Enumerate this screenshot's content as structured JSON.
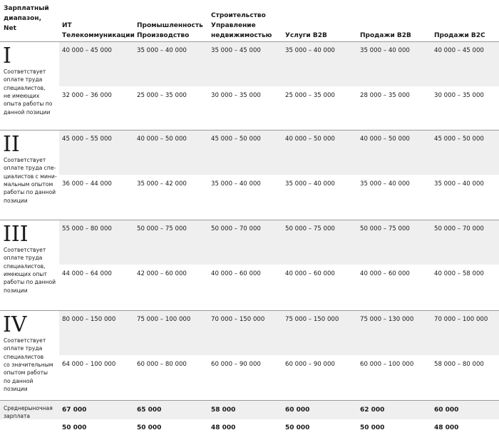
{
  "table": {
    "header": {
      "label": [
        "Зарплатный",
        "диапазон,",
        "Net"
      ],
      "columns": [
        [
          "ИТ",
          "Телекоммуникации"
        ],
        [
          "Промышленность",
          "Производство"
        ],
        [
          "Строительство",
          "Управление",
          "недвижимостью"
        ],
        [
          "Услуги B2B"
        ],
        [
          "Продажи B2B"
        ],
        [
          "Продажи B2C"
        ]
      ]
    },
    "groups": [
      {
        "numeral": "I",
        "description": [
          "Соответствует",
          "оплате труда",
          "специалистов,",
          "не имеющих",
          "опыта работы по",
          "данной позиции"
        ],
        "rows": [
          [
            "40 000 – 45 000",
            "35 000 – 40 000",
            "35 000 – 45 000",
            "35 000 – 40 000",
            "35 000 – 40 000",
            "40 000 – 45 000"
          ],
          [
            "32 000 – 36 000",
            "25 000 – 35 000",
            "30 000 – 35 000",
            "25 000 – 35 000",
            "28 000 – 35 000",
            "30 000 – 35 000"
          ]
        ]
      },
      {
        "numeral": "II",
        "description": [
          "Соответствует",
          "оплате труда спе-",
          "циалистов с мини-",
          "мальным опытом",
          "работы по данной",
          "позиции"
        ],
        "rows": [
          [
            "45 000 – 55 000",
            "40 000 – 50 000",
            "45 000 – 50 000",
            "40 000 – 50 000",
            "40 000 – 50 000",
            "45 000 – 50 000"
          ],
          [
            "36 000 – 44 000",
            "35 000 – 42 000",
            "35 000 – 40 000",
            "35 000 – 40 000",
            "35 000 – 40 000",
            "35 000 – 40 000"
          ]
        ]
      },
      {
        "numeral": "III",
        "description": [
          "Соответствует",
          "оплате труда",
          "специалистов,",
          "имеющих опыт",
          "работы по данной",
          "позиции"
        ],
        "rows": [
          [
            "55 000 – 80 000",
            "50 000 – 75 000",
            "50 000 – 70 000",
            "50 000 – 75 000",
            "50 000 – 75 000",
            "50 000 – 70 000"
          ],
          [
            "44 000 – 64 000",
            "42 000 – 60 000",
            "40 000 – 60 000",
            "40 000 – 60 000",
            "40 000 – 60 000",
            "40 000 – 58 000"
          ]
        ]
      },
      {
        "numeral": "IV",
        "description": [
          "Соответствует",
          "оплате труда",
          "специалистов",
          "со значительным",
          "опытом работы",
          "по данной",
          "позиции"
        ],
        "rows": [
          [
            "80 000 – 150 000",
            "75 000 – 100 000",
            "70 000 – 150 000",
            "75 000 – 150 000",
            "75 000 – 130 000",
            "70 000 – 100 000"
          ],
          [
            "64 000 – 100 000",
            "60 000 – 80 000",
            "60 000 – 90 000",
            "60 000 – 90 000",
            "60 000 – 100 000",
            "58 000 – 80 000"
          ]
        ]
      }
    ],
    "footer": {
      "label": [
        "Среднерыночная",
        "зарплата"
      ],
      "rows": [
        [
          "67 000",
          "65 000",
          "58 000",
          "60 000",
          "62 000",
          "60 000"
        ],
        [
          "50 000",
          "50 000",
          "48 000",
          "50 000",
          "50 000",
          "48 000"
        ]
      ]
    }
  }
}
